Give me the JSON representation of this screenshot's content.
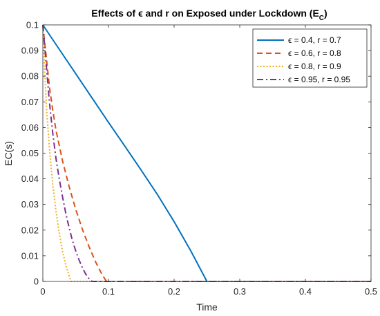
{
  "chart_data": {
    "type": "line",
    "title": "Effects of ϵ and r on Exposed under Lockdown (E",
    "title_subscript": "C",
    "title_suffix": ")",
    "xlabel": "Time",
    "ylabel": "EC(s)",
    "xlim": [
      0,
      0.5
    ],
    "ylim": [
      0,
      0.1
    ],
    "x_ticks": [
      "0",
      "0.1",
      "0.2",
      "0.3",
      "0.4",
      "0.5"
    ],
    "y_ticks": [
      "0",
      "0.01",
      "0.02",
      "0.03",
      "0.04",
      "0.05",
      "0.06",
      "0.07",
      "0.08",
      "0.09",
      "0.1"
    ],
    "grid": false,
    "legend_position": "top-right",
    "series": [
      {
        "name": "ϵ = 0.4, r = 0.7",
        "color": "#0072BD",
        "style": "solid",
        "x": [
          0,
          0.025,
          0.05,
          0.075,
          0.1,
          0.125,
          0.15,
          0.175,
          0.2,
          0.225,
          0.25,
          0.3,
          0.4,
          0.5
        ],
        "y": [
          0.1,
          0.0905,
          0.081,
          0.0715,
          0.062,
          0.0527,
          0.0433,
          0.0337,
          0.0233,
          0.0121,
          0.0,
          0.0,
          0.0,
          0.0
        ]
      },
      {
        "name": "ϵ = 0.6, r = 0.8",
        "color": "#D95319",
        "style": "dashed",
        "x": [
          0,
          0.005,
          0.01,
          0.015,
          0.02,
          0.03,
          0.04,
          0.05,
          0.06,
          0.07,
          0.08,
          0.09,
          0.097,
          0.2,
          0.3,
          0.4,
          0.5
        ],
        "y": [
          0.1,
          0.088,
          0.076,
          0.067,
          0.059,
          0.047,
          0.037,
          0.0282,
          0.0205,
          0.0138,
          0.0078,
          0.0028,
          0.0,
          0.0,
          0.0,
          0.0,
          0.0
        ]
      },
      {
        "name": "ϵ = 0.8, r = 0.9",
        "color": "#EDB120",
        "style": "dotted",
        "x": [
          0,
          0.003,
          0.006,
          0.01,
          0.015,
          0.02,
          0.025,
          0.03,
          0.035,
          0.04,
          0.043,
          0.1,
          0.2,
          0.3,
          0.4,
          0.5
        ],
        "y": [
          0.1,
          0.081,
          0.066,
          0.052,
          0.038,
          0.0275,
          0.0188,
          0.0118,
          0.0063,
          0.0022,
          0.0,
          0.0,
          0.0,
          0.0,
          0.0,
          0.0
        ]
      },
      {
        "name": "ϵ = 0.95, r = 0.95",
        "color": "#7E2F8E",
        "style": "dashdot",
        "x": [
          0,
          0.005,
          0.01,
          0.015,
          0.02,
          0.025,
          0.03,
          0.035,
          0.04,
          0.045,
          0.05,
          0.055,
          0.06,
          0.065,
          0.07,
          0.075,
          0.1,
          0.2,
          0.3,
          0.4,
          0.5
        ],
        "y": [
          0.1,
          0.085,
          0.07,
          0.058,
          0.048,
          0.04,
          0.033,
          0.0265,
          0.021,
          0.016,
          0.012,
          0.0085,
          0.0055,
          0.003,
          0.0012,
          0.0,
          0.0,
          0.0,
          0.0,
          0.0,
          0.0
        ]
      }
    ]
  }
}
